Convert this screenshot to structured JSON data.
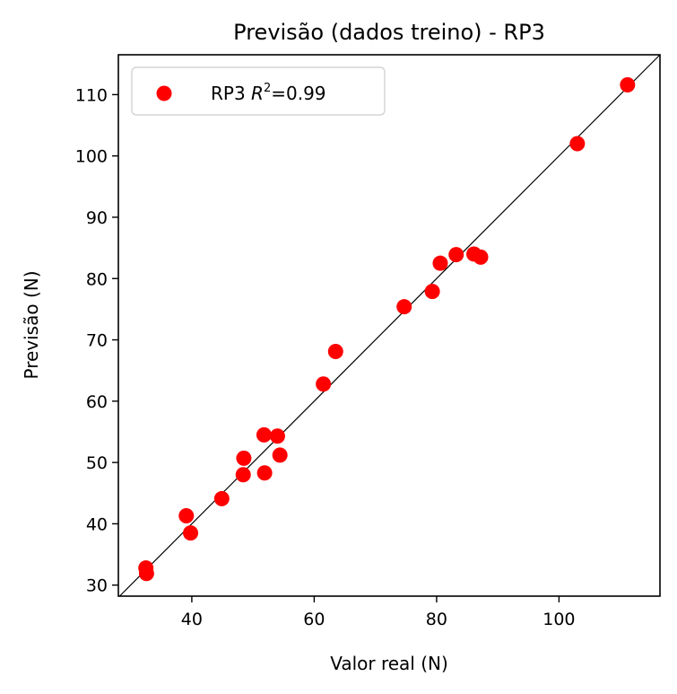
{
  "chart_data": {
    "type": "scatter",
    "title": "Previsão (dados treino) - RP3",
    "xlabel": "Valor real (N)",
    "ylabel": "Previsão (N)",
    "xlim": [
      28,
      116.5
    ],
    "ylim": [
      28.2,
      116.5
    ],
    "xticks": [
      40,
      60,
      80,
      100
    ],
    "yticks": [
      30,
      40,
      50,
      60,
      70,
      80,
      90,
      100,
      110
    ],
    "grid": false,
    "legend": {
      "position": "top-left",
      "label_prefix": "RP3 ",
      "label_var": "R",
      "label_exp": "2",
      "label_suffix": "=0.99"
    },
    "reference_line": "y = x",
    "colors": {
      "points": "#ff0000",
      "line": "#000000"
    },
    "series": [
      {
        "name": "RP3 R²=0.99",
        "points": [
          [
            32.5,
            32.8
          ],
          [
            32.6,
            31.9
          ],
          [
            39.1,
            41.3
          ],
          [
            39.8,
            38.5
          ],
          [
            44.9,
            44.1
          ],
          [
            48.4,
            48.0
          ],
          [
            48.5,
            50.7
          ],
          [
            51.8,
            54.5
          ],
          [
            51.9,
            48.3
          ],
          [
            54.0,
            54.3
          ],
          [
            54.4,
            51.2
          ],
          [
            61.5,
            62.8
          ],
          [
            63.5,
            68.1
          ],
          [
            74.7,
            75.4
          ],
          [
            79.3,
            77.9
          ],
          [
            80.6,
            82.5
          ],
          [
            83.2,
            83.9
          ],
          [
            86.1,
            84.0
          ],
          [
            87.2,
            83.5
          ],
          [
            103.0,
            102.0
          ],
          [
            111.2,
            111.6
          ]
        ]
      }
    ]
  }
}
